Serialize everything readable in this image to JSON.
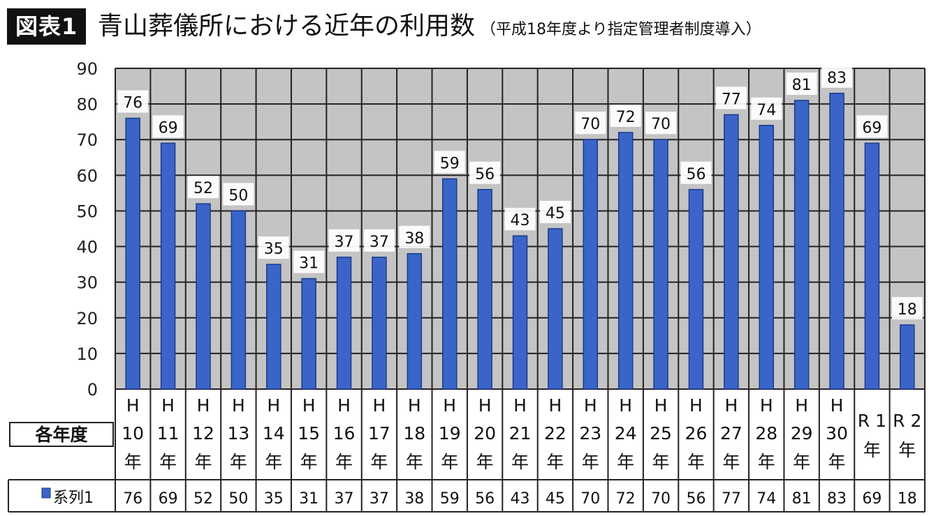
{
  "header": {
    "figure_label": "図表1",
    "title": "青山葬儀所における近年の利用数",
    "subtitle": "（平成18年度より指定管理者制度導入）"
  },
  "colors": {
    "bar": "#3a64c8",
    "bar_edge": "#1c3a8a",
    "plot_bg": "#c4c4c4",
    "grid": "#222222"
  },
  "chart_data": {
    "type": "bar",
    "table_header": "各年度",
    "categories": [
      [
        "H",
        "10",
        "年"
      ],
      [
        "H",
        "11",
        "年"
      ],
      [
        "H",
        "12",
        "年"
      ],
      [
        "H",
        "13",
        "年"
      ],
      [
        "H",
        "14",
        "年"
      ],
      [
        "H",
        "15",
        "年"
      ],
      [
        "H",
        "16",
        "年"
      ],
      [
        "H",
        "17",
        "年"
      ],
      [
        "H",
        "18",
        "年"
      ],
      [
        "H",
        "19",
        "年"
      ],
      [
        "H",
        "20",
        "年"
      ],
      [
        "H",
        "21",
        "年"
      ],
      [
        "H",
        "22",
        "年"
      ],
      [
        "H",
        "23",
        "年"
      ],
      [
        "H",
        "24",
        "年"
      ],
      [
        "H",
        "25",
        "年"
      ],
      [
        "H",
        "26",
        "年"
      ],
      [
        "H",
        "27",
        "年"
      ],
      [
        "H",
        "28",
        "年"
      ],
      [
        "H",
        "29",
        "年"
      ],
      [
        "H",
        "30",
        "年"
      ],
      [
        "R 1",
        "年"
      ],
      [
        "R 2",
        "年"
      ]
    ],
    "series": [
      {
        "name": "系列1",
        "values": [
          76,
          69,
          52,
          50,
          35,
          31,
          37,
          37,
          38,
          59,
          56,
          43,
          45,
          70,
          72,
          70,
          56,
          77,
          74,
          81,
          83,
          69,
          18
        ]
      }
    ],
    "ylim": [
      0,
      90
    ],
    "yticks": [
      0,
      10,
      20,
      30,
      40,
      50,
      60,
      70,
      80,
      90
    ],
    "grid": true,
    "data_labels": true
  }
}
